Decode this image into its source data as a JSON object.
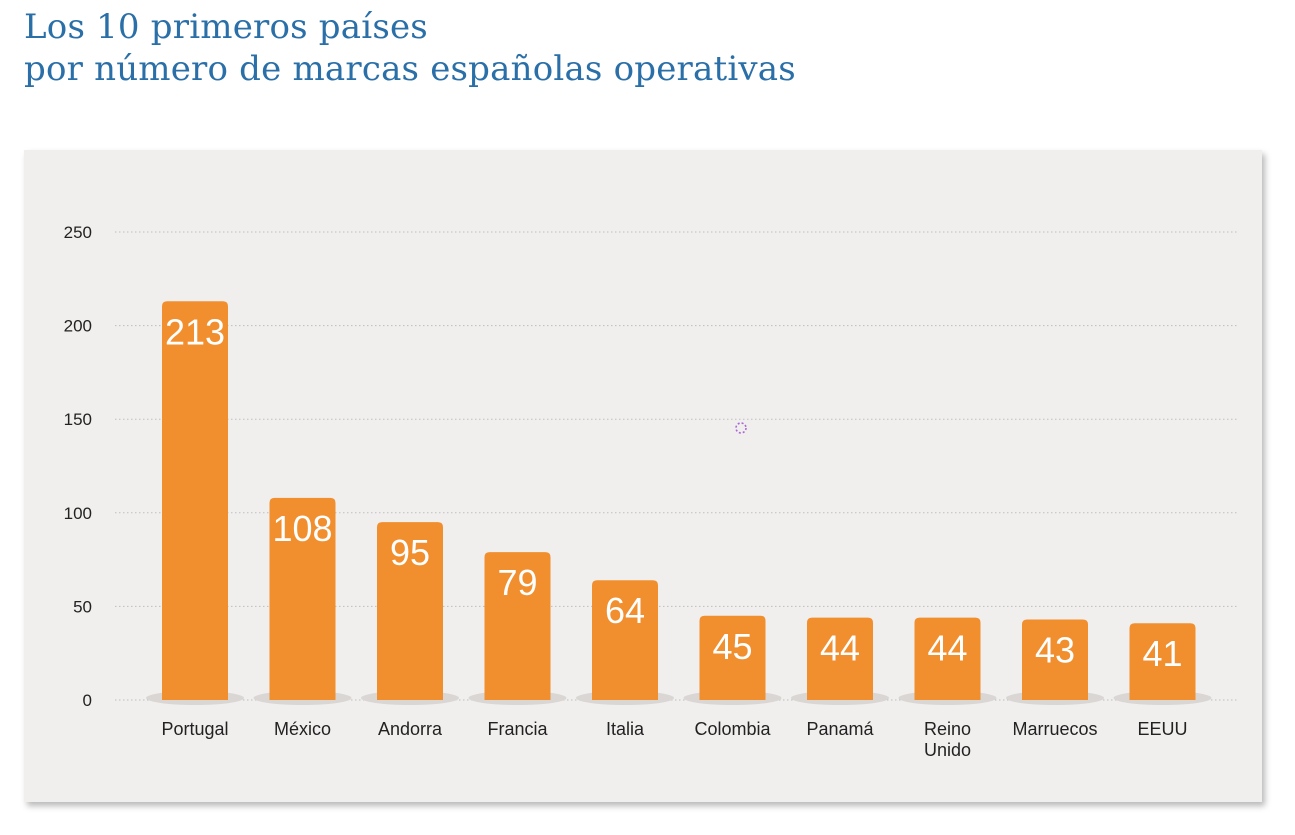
{
  "title": {
    "line1": "Los 10 primeros países",
    "line2": "por número de marcas españolas operativas"
  },
  "colors": {
    "title": "#2a6fa8",
    "bar": "#f18f2f",
    "panel": "#f1efee",
    "grid": "#bdbdbd",
    "marker": "#a868d6"
  },
  "chart_data": {
    "type": "bar",
    "categories": [
      "Portugal",
      "México",
      "Andorra",
      "Francia",
      "Italia",
      "Colombia",
      "Panamá",
      "Reino Unido",
      "Marruecos",
      "EEUU"
    ],
    "values": [
      213,
      108,
      95,
      79,
      64,
      45,
      44,
      44,
      43,
      41
    ],
    "ylim": [
      0,
      250
    ],
    "yticks": [
      0,
      50,
      100,
      150,
      200,
      250
    ],
    "grid": true,
    "data_labels": true,
    "title": "",
    "xlabel": "",
    "ylabel": ""
  }
}
